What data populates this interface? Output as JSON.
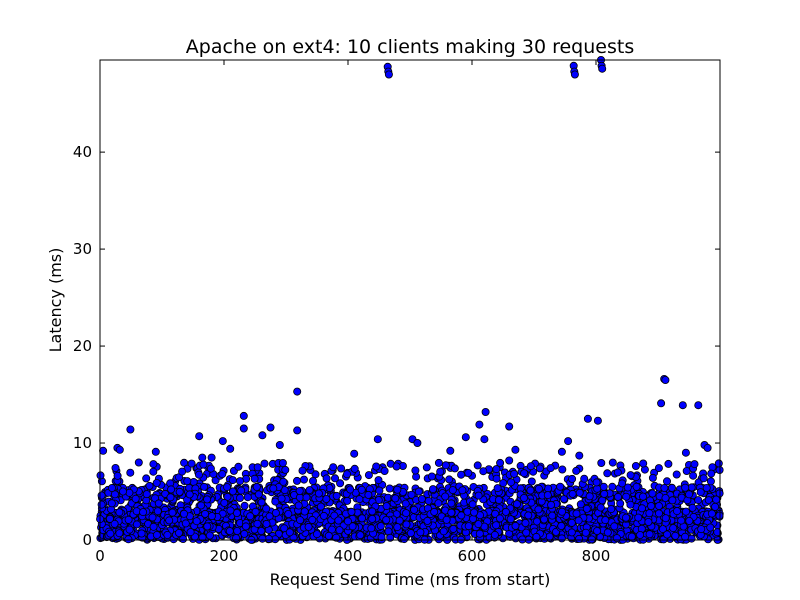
{
  "chart_data": {
    "type": "scatter",
    "title": "Apache on ext4: 10 clients making 30 requests",
    "xlabel": "Request Send Time (ms from start)",
    "ylabel": "Latency (ms)",
    "xlim": [
      0,
      1000
    ],
    "ylim": [
      0,
      49.5
    ],
    "xticks": [
      0,
      200,
      400,
      600,
      800
    ],
    "yticks": [
      0,
      10,
      20,
      30,
      40
    ],
    "grid": false,
    "legend": "none",
    "marker_color": "#0000ff",
    "marker_edge_color": "#000000",
    "outliers": [
      {
        "x": 464,
        "y": 48.8
      },
      {
        "x": 465,
        "y": 48.3
      },
      {
        "x": 466,
        "y": 48.0
      },
      {
        "x": 764,
        "y": 48.9
      },
      {
        "x": 765,
        "y": 48.3
      },
      {
        "x": 766,
        "y": 48.0
      },
      {
        "x": 808,
        "y": 49.6
      },
      {
        "x": 809,
        "y": 48.9
      },
      {
        "x": 810,
        "y": 48.6
      },
      {
        "x": 318,
        "y": 15.3
      },
      {
        "x": 910,
        "y": 16.6
      },
      {
        "x": 912,
        "y": 16.5
      },
      {
        "x": 905,
        "y": 14.1
      },
      {
        "x": 940,
        "y": 13.9
      },
      {
        "x": 965,
        "y": 13.9
      },
      {
        "x": 622,
        "y": 13.2
      },
      {
        "x": 232,
        "y": 12.8
      },
      {
        "x": 787,
        "y": 12.5
      },
      {
        "x": 803,
        "y": 12.3
      },
      {
        "x": 612,
        "y": 11.9
      },
      {
        "x": 232,
        "y": 11.5
      },
      {
        "x": 275,
        "y": 11.6
      },
      {
        "x": 49,
        "y": 11.4
      },
      {
        "x": 318,
        "y": 11.3
      },
      {
        "x": 660,
        "y": 11.7
      },
      {
        "x": 262,
        "y": 10.8
      },
      {
        "x": 160,
        "y": 10.7
      },
      {
        "x": 590,
        "y": 10.6
      },
      {
        "x": 448,
        "y": 10.4
      },
      {
        "x": 620,
        "y": 10.4
      },
      {
        "x": 504,
        "y": 10.4
      },
      {
        "x": 512,
        "y": 10.0
      },
      {
        "x": 198,
        "y": 10.2
      },
      {
        "x": 755,
        "y": 10.2
      },
      {
        "x": 975,
        "y": 9.8
      },
      {
        "x": 290,
        "y": 9.8
      },
      {
        "x": 980,
        "y": 9.5
      },
      {
        "x": 28,
        "y": 9.5
      },
      {
        "x": 32,
        "y": 9.3
      },
      {
        "x": 210,
        "y": 9.4
      },
      {
        "x": 5,
        "y": 9.2
      },
      {
        "x": 90,
        "y": 9.1
      },
      {
        "x": 565,
        "y": 9.2
      },
      {
        "x": 670,
        "y": 9.3
      },
      {
        "x": 745,
        "y": 9.1
      },
      {
        "x": 945,
        "y": 9.0
      },
      {
        "x": 180,
        "y": 8.5
      },
      {
        "x": 165,
        "y": 8.5
      },
      {
        "x": 410,
        "y": 8.9
      },
      {
        "x": 773,
        "y": 8.7
      },
      {
        "x": 660,
        "y": 8.2
      },
      {
        "x": 998,
        "y": 7.9
      }
    ],
    "dense_band": {
      "x_range": [
        0,
        1000
      ],
      "y_range": [
        0,
        8
      ],
      "n_points": 3000,
      "description": "dense cluster of latency samples, mostly 0–6 ms"
    }
  }
}
